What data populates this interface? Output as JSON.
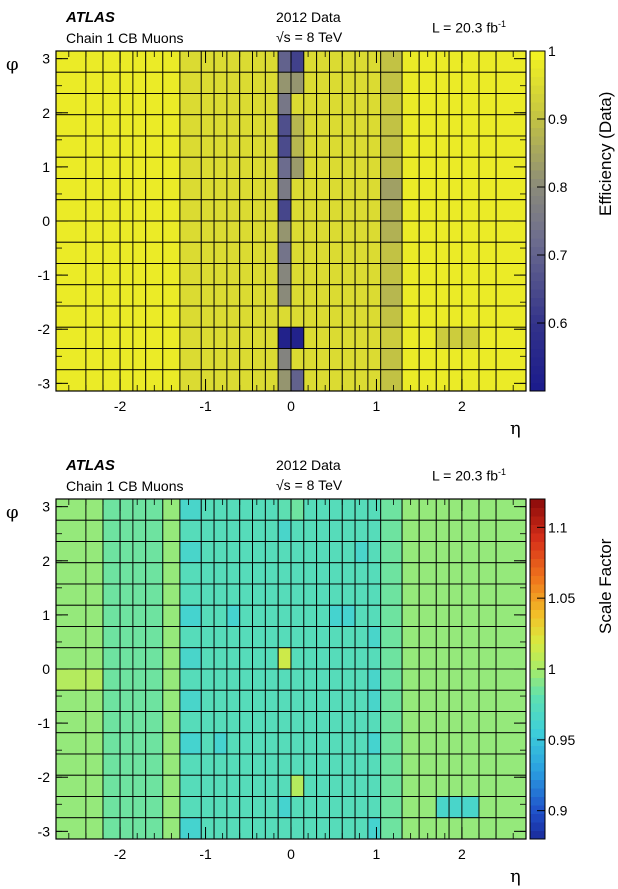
{
  "chart_data": [
    {
      "type": "heatmap",
      "panel": "top",
      "header": {
        "experiment": "ATLAS",
        "chain": "Chain 1 CB Muons",
        "dataset": "2012 Data",
        "energy_prefix": "√s",
        "energy_value": "= 8 TeV",
        "lumi_text": "L = 20.3 fb",
        "lumi_exp": "-1"
      },
      "xlabel": "η",
      "ylabel": "φ",
      "zlabel": "Efficiency (Data)",
      "xlim": [
        -2.75,
        2.75
      ],
      "ylim": [
        -3.1416,
        3.1416
      ],
      "zlim": [
        0.5,
        1.0
      ],
      "x_ticks": [
        -2,
        -1,
        0,
        1,
        2
      ],
      "x_tick_labels": [
        "-2",
        "-1",
        "0",
        "1",
        "2"
      ],
      "y_ticks": [
        -3,
        -2,
        -1,
        0,
        1,
        2,
        3
      ],
      "y_tick_labels": [
        "-3",
        "-2",
        "-1",
        "0",
        "1",
        "2",
        "3"
      ],
      "z_ticks": [
        0.6,
        0.7,
        0.8,
        0.9,
        1.0
      ],
      "z_tick_labels": [
        "0.6",
        "0.7",
        "0.8",
        "0.9",
        "1"
      ],
      "palette": "efficiency",
      "eta_edges": [
        -2.75,
        -2.4,
        -2.2,
        -2.0,
        -1.85,
        -1.7,
        -1.5,
        -1.3,
        -1.05,
        -0.9,
        -0.75,
        -0.6,
        -0.45,
        -0.3,
        -0.15,
        0.0,
        0.15,
        0.3,
        0.45,
        0.6,
        0.75,
        0.9,
        1.05,
        1.3,
        1.5,
        1.7,
        1.85,
        2.0,
        2.2,
        2.4,
        2.75
      ],
      "phi_bins": 16,
      "values": [
        [
          0.98,
          0.98,
          0.98,
          0.98,
          0.98,
          0.98,
          0.98,
          0.95,
          0.95,
          0.95,
          0.95,
          0.95,
          0.95,
          0.95,
          0.7,
          0.63,
          0.95,
          0.95,
          0.95,
          0.95,
          0.95,
          0.95,
          0.9,
          0.98,
          0.98,
          0.98,
          0.98,
          0.98,
          0.98,
          0.98
        ],
        [
          0.98,
          0.98,
          0.98,
          0.98,
          0.98,
          0.98,
          0.98,
          0.95,
          0.95,
          0.95,
          0.95,
          0.95,
          0.95,
          0.95,
          0.82,
          0.82,
          0.95,
          0.95,
          0.95,
          0.95,
          0.95,
          0.95,
          0.9,
          0.98,
          0.98,
          0.98,
          0.98,
          0.98,
          0.98,
          0.98
        ],
        [
          0.98,
          0.98,
          0.98,
          0.98,
          0.98,
          0.98,
          0.98,
          0.95,
          0.95,
          0.95,
          0.95,
          0.95,
          0.95,
          0.95,
          0.75,
          0.95,
          0.95,
          0.95,
          0.95,
          0.95,
          0.95,
          0.95,
          0.92,
          0.98,
          0.98,
          0.98,
          0.98,
          0.98,
          0.98,
          0.98
        ],
        [
          0.98,
          0.98,
          0.98,
          0.98,
          0.98,
          0.98,
          0.98,
          0.95,
          0.95,
          0.95,
          0.95,
          0.95,
          0.95,
          0.95,
          0.66,
          0.88,
          0.95,
          0.95,
          0.95,
          0.95,
          0.95,
          0.95,
          0.9,
          0.98,
          0.98,
          0.98,
          0.98,
          0.98,
          0.98,
          0.98
        ],
        [
          0.98,
          0.98,
          0.98,
          0.98,
          0.98,
          0.98,
          0.98,
          0.95,
          0.95,
          0.95,
          0.95,
          0.95,
          0.95,
          0.95,
          0.65,
          0.88,
          0.95,
          0.95,
          0.95,
          0.95,
          0.95,
          0.95,
          0.9,
          0.98,
          0.98,
          0.98,
          0.98,
          0.98,
          0.98,
          0.98
        ],
        [
          0.98,
          0.98,
          0.98,
          0.98,
          0.98,
          0.98,
          0.98,
          0.95,
          0.95,
          0.95,
          0.95,
          0.95,
          0.95,
          0.95,
          0.72,
          0.83,
          0.95,
          0.95,
          0.95,
          0.95,
          0.95,
          0.95,
          0.9,
          0.98,
          0.98,
          0.98,
          0.98,
          0.98,
          0.98,
          0.98
        ],
        [
          0.98,
          0.98,
          0.98,
          0.98,
          0.98,
          0.98,
          0.98,
          0.95,
          0.95,
          0.95,
          0.95,
          0.95,
          0.95,
          0.95,
          0.76,
          0.95,
          0.95,
          0.95,
          0.95,
          0.95,
          0.95,
          0.95,
          0.84,
          0.98,
          0.98,
          0.98,
          0.98,
          0.98,
          0.98,
          0.98
        ],
        [
          0.98,
          0.98,
          0.98,
          0.98,
          0.98,
          0.98,
          0.98,
          0.95,
          0.95,
          0.95,
          0.95,
          0.95,
          0.95,
          0.95,
          0.64,
          0.95,
          0.95,
          0.95,
          0.95,
          0.95,
          0.95,
          0.95,
          0.87,
          0.98,
          0.98,
          0.98,
          0.98,
          0.98,
          0.98,
          0.98
        ],
        [
          0.98,
          0.98,
          0.98,
          0.98,
          0.98,
          0.98,
          0.98,
          0.95,
          0.95,
          0.95,
          0.95,
          0.95,
          0.95,
          0.95,
          0.82,
          0.95,
          0.95,
          0.95,
          0.95,
          0.95,
          0.95,
          0.95,
          0.87,
          0.98,
          0.98,
          0.98,
          0.98,
          0.98,
          0.98,
          0.98
        ],
        [
          0.98,
          0.98,
          0.98,
          0.98,
          0.98,
          0.98,
          0.98,
          0.95,
          0.95,
          0.95,
          0.95,
          0.95,
          0.95,
          0.95,
          0.74,
          0.95,
          0.95,
          0.95,
          0.95,
          0.95,
          0.95,
          0.95,
          0.9,
          0.98,
          0.98,
          0.98,
          0.98,
          0.98,
          0.98,
          0.98
        ],
        [
          0.98,
          0.98,
          0.98,
          0.98,
          0.98,
          0.98,
          0.98,
          0.95,
          0.95,
          0.95,
          0.95,
          0.95,
          0.95,
          0.95,
          0.79,
          0.95,
          0.95,
          0.95,
          0.95,
          0.95,
          0.95,
          0.95,
          0.9,
          0.98,
          0.98,
          0.98,
          0.98,
          0.98,
          0.98,
          0.98
        ],
        [
          0.98,
          0.98,
          0.98,
          0.98,
          0.98,
          0.98,
          0.98,
          0.95,
          0.95,
          0.95,
          0.95,
          0.95,
          0.95,
          0.95,
          0.8,
          0.95,
          0.95,
          0.95,
          0.95,
          0.95,
          0.95,
          0.95,
          0.88,
          0.98,
          0.98,
          0.98,
          0.98,
          0.98,
          0.98,
          0.98
        ],
        [
          0.98,
          0.98,
          0.98,
          0.98,
          0.98,
          0.98,
          0.98,
          0.95,
          0.95,
          0.95,
          0.95,
          0.95,
          0.95,
          0.95,
          0.95,
          0.95,
          0.95,
          0.95,
          0.95,
          0.95,
          0.95,
          0.95,
          0.9,
          0.98,
          0.98,
          0.98,
          0.98,
          0.98,
          0.98,
          0.98
        ],
        [
          0.98,
          0.98,
          0.98,
          0.98,
          0.98,
          0.98,
          0.98,
          0.95,
          0.95,
          0.95,
          0.95,
          0.95,
          0.95,
          0.95,
          0.53,
          0.53,
          0.95,
          0.95,
          0.95,
          0.95,
          0.95,
          0.95,
          0.92,
          0.98,
          0.98,
          0.92,
          0.92,
          0.92,
          0.98,
          0.98
        ],
        [
          0.98,
          0.98,
          0.98,
          0.98,
          0.98,
          0.98,
          0.98,
          0.95,
          0.95,
          0.95,
          0.95,
          0.95,
          0.95,
          0.95,
          0.78,
          0.95,
          0.95,
          0.95,
          0.95,
          0.95,
          0.95,
          0.95,
          0.9,
          0.98,
          0.98,
          0.98,
          0.98,
          0.98,
          0.98,
          0.98
        ],
        [
          0.98,
          0.98,
          0.98,
          0.98,
          0.98,
          0.98,
          0.98,
          0.95,
          0.95,
          0.95,
          0.95,
          0.95,
          0.95,
          0.95,
          0.82,
          0.7,
          0.95,
          0.95,
          0.95,
          0.95,
          0.95,
          0.95,
          0.9,
          0.98,
          0.98,
          0.98,
          0.98,
          0.98,
          0.98,
          0.98
        ]
      ]
    },
    {
      "type": "heatmap",
      "panel": "bottom",
      "header": {
        "experiment": "ATLAS",
        "chain": "Chain 1 CB Muons",
        "dataset": "2012 Data",
        "energy_prefix": "√s",
        "energy_value": "= 8 TeV",
        "lumi_text": "L = 20.3 fb",
        "lumi_exp": "-1"
      },
      "xlabel": "η",
      "ylabel": "φ",
      "zlabel": "Scale Factor",
      "xlim": [
        -2.75,
        2.75
      ],
      "ylim": [
        -3.1416,
        3.1416
      ],
      "zlim": [
        0.88,
        1.12
      ],
      "x_ticks": [
        -2,
        -1,
        0,
        1,
        2
      ],
      "x_tick_labels": [
        "-2",
        "-1",
        "0",
        "1",
        "2"
      ],
      "y_ticks": [
        -3,
        -2,
        -1,
        0,
        1,
        2,
        3
      ],
      "y_tick_labels": [
        "-3",
        "-2",
        "-1",
        "0",
        "1",
        "2",
        "3"
      ],
      "z_ticks": [
        0.9,
        0.95,
        1.0,
        1.05,
        1.1
      ],
      "z_tick_labels": [
        "0.9",
        "0.95",
        "1",
        "1.05",
        "1.1"
      ],
      "palette": "scale",
      "eta_edges": [
        -2.75,
        -2.4,
        -2.2,
        -2.0,
        -1.85,
        -1.7,
        -1.5,
        -1.3,
        -1.05,
        -0.9,
        -0.75,
        -0.6,
        -0.45,
        -0.3,
        -0.15,
        0.0,
        0.15,
        0.3,
        0.45,
        0.6,
        0.75,
        0.9,
        1.05,
        1.3,
        1.5,
        1.7,
        1.85,
        2.0,
        2.2,
        2.4,
        2.75
      ],
      "phi_bins": 16,
      "values": [
        [
          0.995,
          0.995,
          0.985,
          0.985,
          0.985,
          0.985,
          0.995,
          0.965,
          0.975,
          0.975,
          0.975,
          0.975,
          0.975,
          0.975,
          0.98,
          0.985,
          0.975,
          0.975,
          0.975,
          0.975,
          0.975,
          0.975,
          0.985,
          0.995,
          0.995,
          0.995,
          0.995,
          0.995,
          0.995,
          0.995
        ],
        [
          0.995,
          0.995,
          0.985,
          0.985,
          0.985,
          0.985,
          0.995,
          0.975,
          0.975,
          0.975,
          0.975,
          0.975,
          0.975,
          0.975,
          0.965,
          0.975,
          0.975,
          0.975,
          0.975,
          0.975,
          0.975,
          0.975,
          0.985,
          0.995,
          0.995,
          0.995,
          0.995,
          0.995,
          0.995,
          0.995
        ],
        [
          0.995,
          0.995,
          0.985,
          0.985,
          0.985,
          0.985,
          0.995,
          0.965,
          0.975,
          0.975,
          0.975,
          0.975,
          0.975,
          0.975,
          0.975,
          0.975,
          0.975,
          0.975,
          0.975,
          0.975,
          0.965,
          0.975,
          0.985,
          0.995,
          0.995,
          0.995,
          0.995,
          0.995,
          0.995,
          0.995
        ],
        [
          0.995,
          0.995,
          0.985,
          0.985,
          0.985,
          0.985,
          0.995,
          0.975,
          0.975,
          0.975,
          0.975,
          0.975,
          0.975,
          0.975,
          0.975,
          0.975,
          0.975,
          0.975,
          0.975,
          0.975,
          0.975,
          0.975,
          0.985,
          0.995,
          0.995,
          0.995,
          0.995,
          0.995,
          0.995,
          0.995
        ],
        [
          0.995,
          0.995,
          0.985,
          0.985,
          0.985,
          0.985,
          0.995,
          0.975,
          0.975,
          0.975,
          0.975,
          0.975,
          0.975,
          0.975,
          0.975,
          0.975,
          0.975,
          0.975,
          0.975,
          0.975,
          0.975,
          0.975,
          0.985,
          0.995,
          0.995,
          0.995,
          0.995,
          0.995,
          0.995,
          0.995
        ],
        [
          0.995,
          0.995,
          0.985,
          0.985,
          0.985,
          0.985,
          0.995,
          0.962,
          0.975,
          0.975,
          0.962,
          0.975,
          0.975,
          0.975,
          0.975,
          0.975,
          0.975,
          0.975,
          0.962,
          0.962,
          0.975,
          0.975,
          0.985,
          0.995,
          0.995,
          0.995,
          0.995,
          0.995,
          0.995,
          0.995
        ],
        [
          0.995,
          0.995,
          0.985,
          0.985,
          0.985,
          0.985,
          0.995,
          0.975,
          0.975,
          0.975,
          0.975,
          0.975,
          0.975,
          0.975,
          0.975,
          0.975,
          0.975,
          0.975,
          0.975,
          0.975,
          0.975,
          0.965,
          0.985,
          0.995,
          0.995,
          0.995,
          0.995,
          0.995,
          0.995,
          0.995
        ],
        [
          0.995,
          0.995,
          0.985,
          0.985,
          0.985,
          0.985,
          0.995,
          0.965,
          0.975,
          0.975,
          0.975,
          0.975,
          0.975,
          0.975,
          1.015,
          0.975,
          0.975,
          0.975,
          0.975,
          0.975,
          0.975,
          0.975,
          0.985,
          0.995,
          0.995,
          0.995,
          0.995,
          0.995,
          0.995,
          0.995
        ],
        [
          1.005,
          1.005,
          0.985,
          0.985,
          0.985,
          0.985,
          0.995,
          0.975,
          0.975,
          0.975,
          0.975,
          0.975,
          0.975,
          0.975,
          0.975,
          0.975,
          0.975,
          0.975,
          0.975,
          0.975,
          0.975,
          0.965,
          0.985,
          0.995,
          0.995,
          0.995,
          0.995,
          0.995,
          0.995,
          0.995
        ],
        [
          0.995,
          0.995,
          0.985,
          0.985,
          0.985,
          0.985,
          0.995,
          0.965,
          0.975,
          0.975,
          0.975,
          0.975,
          0.975,
          0.975,
          0.975,
          0.975,
          0.975,
          0.975,
          0.975,
          0.975,
          0.975,
          0.965,
          0.985,
          0.995,
          0.995,
          0.995,
          0.995,
          0.995,
          0.995,
          0.995
        ],
        [
          0.995,
          0.995,
          0.985,
          0.985,
          0.985,
          0.985,
          0.995,
          0.975,
          0.975,
          0.975,
          0.975,
          0.975,
          0.975,
          0.975,
          0.975,
          0.975,
          0.975,
          0.975,
          0.975,
          0.975,
          0.975,
          0.975,
          0.985,
          0.995,
          0.995,
          0.995,
          0.995,
          0.995,
          0.995,
          0.995
        ],
        [
          0.995,
          0.995,
          0.985,
          0.985,
          0.985,
          0.985,
          0.995,
          0.962,
          0.975,
          0.962,
          0.975,
          0.975,
          0.975,
          0.975,
          0.975,
          0.975,
          0.975,
          0.975,
          0.975,
          0.975,
          0.975,
          0.962,
          0.985,
          0.995,
          0.995,
          0.995,
          0.995,
          0.995,
          0.995,
          0.995
        ],
        [
          0.995,
          0.995,
          0.985,
          0.985,
          0.985,
          0.985,
          0.995,
          0.975,
          0.975,
          0.975,
          0.975,
          0.975,
          0.975,
          0.975,
          0.975,
          0.975,
          0.975,
          0.975,
          0.975,
          0.975,
          0.975,
          0.975,
          0.985,
          0.995,
          0.995,
          0.995,
          0.995,
          0.995,
          0.995,
          0.995
        ],
        [
          0.995,
          0.995,
          0.985,
          0.985,
          0.985,
          0.985,
          0.995,
          0.975,
          0.975,
          0.975,
          0.975,
          0.975,
          0.975,
          0.975,
          0.975,
          1.005,
          0.975,
          0.975,
          0.975,
          0.975,
          0.975,
          0.975,
          0.985,
          0.995,
          0.995,
          0.995,
          0.995,
          0.995,
          0.995,
          0.995
        ],
        [
          0.995,
          0.995,
          0.985,
          0.985,
          0.985,
          0.985,
          0.995,
          0.975,
          0.975,
          0.975,
          0.975,
          0.975,
          0.975,
          0.975,
          0.962,
          0.975,
          0.975,
          0.975,
          0.975,
          0.975,
          0.975,
          0.975,
          0.985,
          0.995,
          0.995,
          0.965,
          0.965,
          0.965,
          0.995,
          0.995
        ],
        [
          0.995,
          0.995,
          0.985,
          0.985,
          0.985,
          0.985,
          0.995,
          0.962,
          0.975,
          0.975,
          0.975,
          0.975,
          0.975,
          0.975,
          0.975,
          0.975,
          0.975,
          0.975,
          0.975,
          0.975,
          0.975,
          0.962,
          0.985,
          0.995,
          0.995,
          0.995,
          0.995,
          0.995,
          0.995,
          0.995
        ]
      ]
    }
  ]
}
